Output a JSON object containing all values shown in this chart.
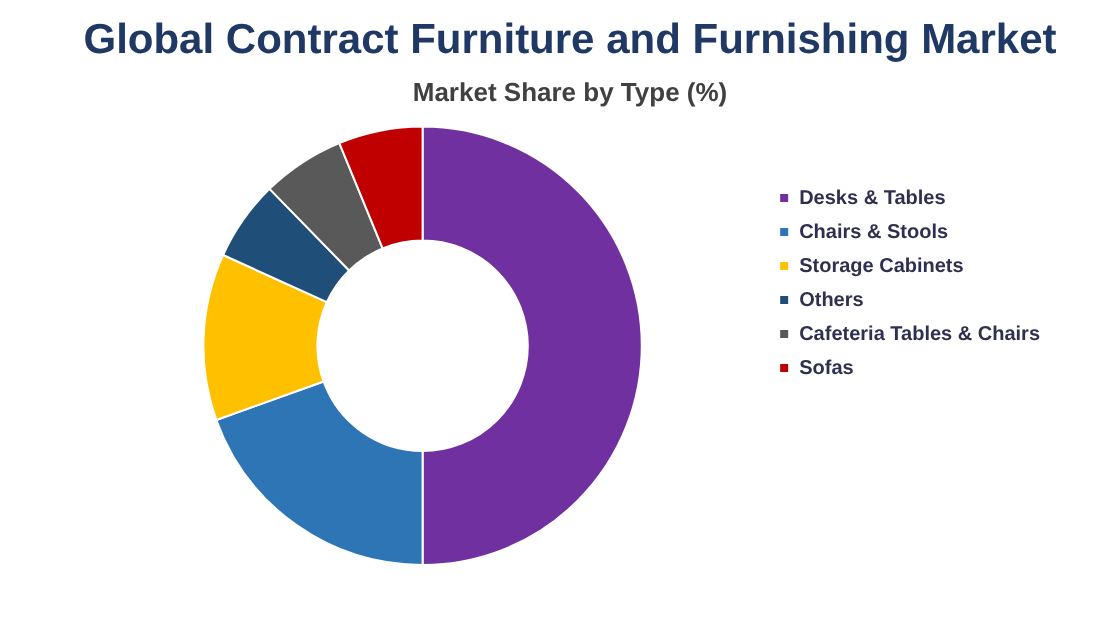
{
  "chart_data": {
    "type": "donut",
    "title": "Global Contract Furniture and Furnishing Market",
    "subtitle": "Market Share by Type (%)",
    "categories": [
      "Desks & Tables",
      "Chairs & Stools",
      "Storage Cabinets",
      "Others",
      "Cafeteria Tables & Chairs",
      "Sofas"
    ],
    "values": [
      50,
      19.5,
      12.3,
      5.9,
      6.1,
      6.2
    ],
    "colors": [
      "#7030a0",
      "#2e75b6",
      "#ffc000",
      "#1f4e79",
      "#595959",
      "#c00000"
    ],
    "legend": "right"
  }
}
